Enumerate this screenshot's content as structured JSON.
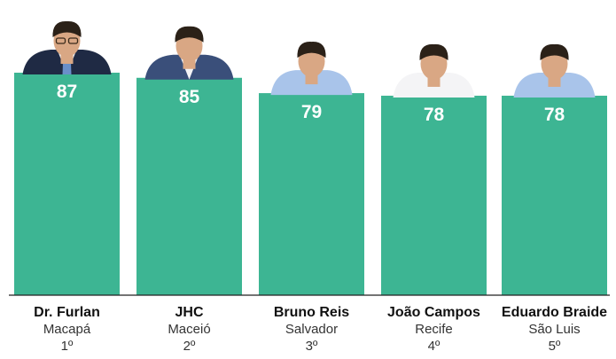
{
  "chart_data": {
    "type": "bar",
    "title": "",
    "xlabel": "",
    "ylabel": "",
    "ylim": [
      0,
      100
    ],
    "grid": false,
    "legend": "none",
    "bar_color": "#3db593",
    "categories": [
      {
        "name": "Dr. Furlan",
        "city": "Macapá",
        "rank": "1º",
        "value": 87,
        "value_label": "87",
        "photo": "suit-portrait-glasses"
      },
      {
        "name": "JHC",
        "city": "Maceió",
        "rank": "2º",
        "value": 85,
        "value_label": "85",
        "photo": "suit-portrait"
      },
      {
        "name": "Bruno Reis",
        "city": "Salvador",
        "rank": "3º",
        "value": 79,
        "value_label": "79",
        "photo": "blue-shirt-portrait"
      },
      {
        "name": "João Campos",
        "city": "Recife",
        "rank": "4º",
        "value": 78,
        "value_label": "78",
        "photo": "white-shirt-portrait"
      },
      {
        "name": "Eduardo Braide",
        "city": "São Luis",
        "rank": "5º",
        "value": 78,
        "value_label": "78",
        "photo": "blue-shirt-portrait"
      }
    ]
  }
}
